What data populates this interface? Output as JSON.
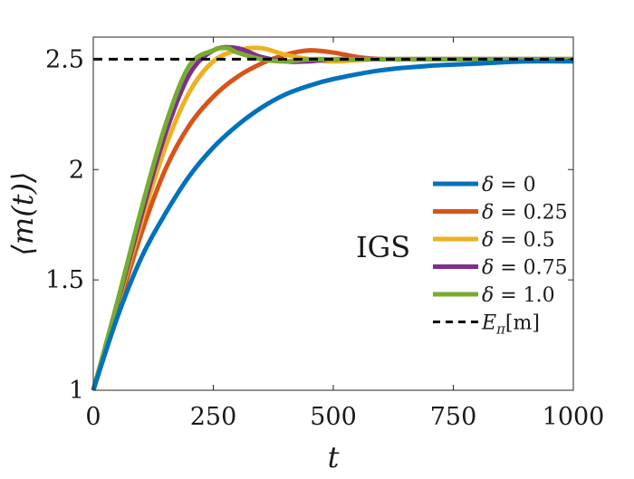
{
  "chart_data": {
    "type": "line",
    "title": "",
    "xlabel": "t",
    "ylabel": "⟨m(t)⟩",
    "xlim": [
      0,
      1000
    ],
    "ylim": [
      1,
      2.6
    ],
    "xticks": [
      0,
      250,
      500,
      750,
      1000
    ],
    "xtick_labels": [
      "0",
      "250",
      "500",
      "750",
      "1000"
    ],
    "yticks": [
      1,
      1.5,
      2,
      2.5
    ],
    "ytick_labels": [
      "1",
      "1.5",
      "2",
      "2.5"
    ],
    "grid": false,
    "legend_position": "right",
    "annotation": "IGS",
    "series": [
      {
        "name": "δ = 0.25",
        "legend_symbol": "δ",
        "legend_value": " = 0.25",
        "color": "#D95319",
        "dashed": false,
        "x": [
          0,
          50,
          100,
          150,
          200,
          250,
          300,
          350,
          400,
          450,
          500,
          550,
          600,
          700,
          800,
          900,
          1000
        ],
        "y": [
          1.0,
          1.36,
          1.71,
          2.0,
          2.2,
          2.33,
          2.42,
          2.48,
          2.52,
          2.54,
          2.53,
          2.51,
          2.5,
          2.5,
          2.5,
          2.5,
          2.5
        ]
      },
      {
        "name": "δ = 0.5",
        "legend_symbol": "δ",
        "legend_value": " = 0.5",
        "color": "#EDB120",
        "dashed": false,
        "x": [
          0,
          50,
          100,
          150,
          200,
          250,
          300,
          350,
          400,
          450,
          500,
          600,
          800,
          1000
        ],
        "y": [
          1.0,
          1.38,
          1.76,
          2.1,
          2.35,
          2.49,
          2.54,
          2.55,
          2.52,
          2.5,
          2.49,
          2.5,
          2.5,
          2.5
        ]
      },
      {
        "name": "δ = 0.75",
        "legend_symbol": "δ",
        "legend_value": " = 0.75",
        "color": "#7E2F8E",
        "dashed": false,
        "x": [
          0,
          50,
          100,
          150,
          200,
          250,
          300,
          350,
          400,
          450,
          500,
          600,
          800,
          1000
        ],
        "y": [
          1.0,
          1.39,
          1.79,
          2.16,
          2.43,
          2.54,
          2.55,
          2.51,
          2.49,
          2.49,
          2.5,
          2.5,
          2.5,
          2.5
        ]
      },
      {
        "name": "δ = 1.0",
        "legend_symbol": "δ",
        "legend_value": " = 1.0",
        "color": "#77AC30",
        "dashed": false,
        "x": [
          0,
          50,
          100,
          150,
          200,
          250,
          280,
          300,
          350,
          400,
          450,
          500,
          600,
          800,
          1000
        ],
        "y": [
          1.0,
          1.4,
          1.82,
          2.2,
          2.47,
          2.54,
          2.55,
          2.53,
          2.5,
          2.49,
          2.5,
          2.5,
          2.5,
          2.5,
          2.5
        ]
      },
      {
        "name": "δ = 0",
        "legend_symbol": "δ",
        "legend_value": " = 0",
        "color": "#0072BD",
        "dashed": false,
        "x": [
          0,
          50,
          100,
          150,
          200,
          250,
          300,
          350,
          400,
          450,
          500,
          600,
          700,
          800,
          900,
          1000
        ],
        "y": [
          1.0,
          1.33,
          1.6,
          1.8,
          1.97,
          2.1,
          2.2,
          2.28,
          2.34,
          2.38,
          2.41,
          2.45,
          2.47,
          2.48,
          2.49,
          2.49
        ]
      },
      {
        "name": "Eπ[m]",
        "legend_symbol": "E",
        "legend_sub": "π",
        "legend_value": "[m]",
        "color": "#000000",
        "dashed": true,
        "x": [
          0,
          1000
        ],
        "y": [
          2.5,
          2.5
        ]
      }
    ],
    "legend_order": [
      4,
      0,
      1,
      2,
      3,
      5
    ]
  }
}
